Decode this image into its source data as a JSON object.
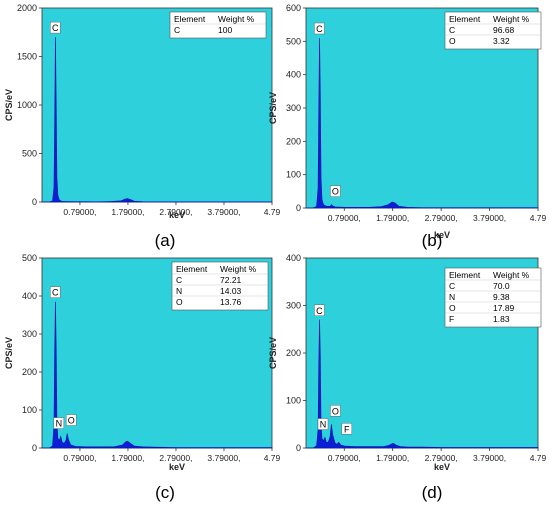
{
  "figure": {
    "panels": [
      {
        "label": "(a)",
        "ylabel": "CPS/eV",
        "xlabel": "keV",
        "table": {
          "headers": [
            "Element",
            "Weight %"
          ],
          "rows": [
            [
              "C",
              "100"
            ]
          ]
        }
      },
      {
        "label": "(b)",
        "ylabel": "CPS/eV",
        "xlabel": "keV",
        "table": {
          "headers": [
            "Element",
            "Weight %"
          ],
          "rows": [
            [
              "C",
              "96.68"
            ],
            [
              "O",
              "3.32"
            ]
          ]
        }
      },
      {
        "label": "(c)",
        "ylabel": "CPS/eV",
        "xlabel": "keV",
        "table": {
          "headers": [
            "Element",
            "Weight %"
          ],
          "rows": [
            [
              "C",
              "72.21"
            ],
            [
              "N",
              "14.03"
            ],
            [
              "O",
              "13.76"
            ]
          ]
        }
      },
      {
        "label": "(d)",
        "ylabel": "CPS/eV",
        "xlabel": "keV",
        "table": {
          "headers": [
            "Element",
            "Weight %"
          ],
          "rows": [
            [
              "C",
              "70.0"
            ],
            [
              "N",
              "9.38"
            ],
            [
              "O",
              "17.89"
            ],
            [
              "F",
              "1.83"
            ]
          ]
        }
      }
    ]
  },
  "chart_data": [
    {
      "type": "line",
      "title": "",
      "panel_label": "(a)",
      "xlabel": "keV",
      "ylabel": "CPS/eV",
      "xlim": [
        0.0,
        4.79
      ],
      "ylim": [
        0,
        2000
      ],
      "xticks": [
        0.79,
        1.79,
        2.79,
        3.79,
        4.79
      ],
      "xtick_labels": [
        "0.79000,",
        "1.79000,",
        "2.79000,",
        "3.79000,",
        "4.79"
      ],
      "yticks": [
        0,
        500,
        1000,
        1500,
        2000
      ],
      "fill_color": "#0a1fd6",
      "background_color": "#2ed0dc",
      "series": [
        {
          "x": [
            0.0,
            0.15,
            0.22,
            0.25,
            0.265,
            0.28,
            0.295,
            0.31,
            0.33,
            0.36,
            0.42,
            0.55,
            0.7,
            0.9,
            1.1,
            1.3,
            1.45,
            1.65,
            1.73,
            1.78,
            1.84,
            1.92,
            2.1,
            2.4,
            2.8,
            3.2,
            3.6,
            4.0,
            4.4,
            4.79
          ],
          "y": [
            0,
            0,
            10,
            150,
            800,
            1700,
            1000,
            250,
            70,
            20,
            5,
            4,
            3,
            3,
            2,
            3,
            5,
            12,
            30,
            35,
            25,
            8,
            3,
            2,
            2,
            1,
            1,
            1,
            1,
            1
          ]
        }
      ],
      "peak_labels": [
        {
          "element": "C",
          "x": 0.277,
          "y": 1700
        }
      ],
      "table": {
        "headers": [
          "Element",
          "Weight %"
        ],
        "rows": [
          [
            "C",
            "100"
          ]
        ]
      }
    },
    {
      "type": "line",
      "title": "",
      "panel_label": "(b)",
      "xlabel": "keV",
      "ylabel": "CPS/eV",
      "xlim": [
        0.0,
        4.79
      ],
      "ylim": [
        0,
        600
      ],
      "xticks": [
        0.79,
        1.79,
        2.79,
        3.79,
        4.79
      ],
      "xtick_labels": [
        "0.79000,",
        "1.79000,",
        "2.79000,",
        "3.79000,",
        "4.79"
      ],
      "yticks": [
        0,
        100,
        200,
        300,
        400,
        500,
        600
      ],
      "fill_color": "#0a1fd6",
      "background_color": "#2ed0dc",
      "series": [
        {
          "x": [
            0.0,
            0.15,
            0.22,
            0.25,
            0.265,
            0.28,
            0.295,
            0.31,
            0.33,
            0.36,
            0.42,
            0.5,
            0.525,
            0.55,
            0.6,
            0.8,
            1.0,
            1.3,
            1.55,
            1.7,
            1.78,
            1.84,
            1.92,
            2.1,
            2.4,
            2.8,
            3.2,
            3.6,
            4.0,
            4.4,
            4.79
          ],
          "y": [
            0,
            0,
            5,
            60,
            300,
            510,
            330,
            90,
            25,
            10,
            5,
            5,
            10,
            6,
            3,
            2,
            2,
            2,
            4,
            10,
            18,
            15,
            5,
            2,
            1,
            1,
            1,
            1,
            1,
            1,
            1
          ]
        }
      ],
      "peak_labels": [
        {
          "element": "C",
          "x": 0.277,
          "y": 510
        },
        {
          "element": "O",
          "x": 0.525,
          "y": 10
        }
      ],
      "table": {
        "headers": [
          "Element",
          "Weight %"
        ],
        "rows": [
          [
            "C",
            "96.68"
          ],
          [
            "O",
            "3.32"
          ]
        ]
      }
    },
    {
      "type": "line",
      "title": "",
      "panel_label": "(c)",
      "xlabel": "keV",
      "ylabel": "CPS/eV",
      "xlim": [
        0.0,
        4.79
      ],
      "ylim": [
        0,
        500
      ],
      "xticks": [
        0.79,
        1.79,
        2.79,
        3.79,
        4.79
      ],
      "xtick_labels": [
        "0.79000,",
        "1.79000,",
        "2.79000,",
        "3.79000,",
        "4.79"
      ],
      "yticks": [
        0,
        100,
        200,
        300,
        400,
        500
      ],
      "fill_color": "#0a1fd6",
      "background_color": "#2ed0dc",
      "series": [
        {
          "x": [
            0.0,
            0.15,
            0.22,
            0.25,
            0.265,
            0.28,
            0.295,
            0.31,
            0.33,
            0.36,
            0.39,
            0.42,
            0.46,
            0.5,
            0.525,
            0.55,
            0.6,
            0.7,
            0.9,
            1.2,
            1.5,
            1.68,
            1.74,
            1.78,
            1.84,
            1.92,
            2.1,
            2.4,
            2.8,
            3.2,
            3.6,
            4.0,
            4.4,
            4.79
          ],
          "y": [
            0,
            0,
            5,
            60,
            250,
            385,
            260,
            70,
            25,
            20,
            30,
            15,
            12,
            20,
            38,
            22,
            8,
            4,
            3,
            3,
            3,
            8,
            16,
            18,
            12,
            5,
            3,
            2,
            1,
            1,
            1,
            1,
            1,
            1
          ]
        }
      ],
      "peak_labels": [
        {
          "element": "C",
          "x": 0.277,
          "y": 385
        },
        {
          "element": "N",
          "x": 0.392,
          "y": 30
        },
        {
          "element": "O",
          "x": 0.525,
          "y": 38
        }
      ],
      "table": {
        "headers": [
          "Element",
          "Weight %"
        ],
        "rows": [
          [
            "C",
            "72.21"
          ],
          [
            "N",
            "14.03"
          ],
          [
            "O",
            "13.76"
          ]
        ]
      }
    },
    {
      "type": "line",
      "title": "",
      "panel_label": "(d)",
      "xlabel": "keV",
      "ylabel": "CPS/eV",
      "xlim": [
        0.0,
        4.79
      ],
      "ylim": [
        0,
        400
      ],
      "xticks": [
        0.79,
        1.79,
        2.79,
        3.79,
        4.79
      ],
      "xtick_labels": [
        "0.79000,",
        "1.79000,",
        "2.79000,",
        "3.79000,",
        "4.79"
      ],
      "yticks": [
        0,
        100,
        200,
        300,
        400
      ],
      "fill_color": "#0a1fd6",
      "background_color": "#2ed0dc",
      "series": [
        {
          "x": [
            0.0,
            0.15,
            0.22,
            0.25,
            0.265,
            0.28,
            0.295,
            0.31,
            0.33,
            0.36,
            0.39,
            0.42,
            0.46,
            0.5,
            0.525,
            0.55,
            0.6,
            0.64,
            0.677,
            0.72,
            0.8,
            1.0,
            1.3,
            1.6,
            1.7,
            1.76,
            1.8,
            1.86,
            1.95,
            2.1,
            2.4,
            2.8,
            3.2,
            3.6,
            4.0,
            4.4,
            4.79
          ],
          "y": [
            0,
            0,
            5,
            40,
            180,
            270,
            190,
            50,
            20,
            15,
            22,
            12,
            12,
            25,
            50,
            28,
            10,
            8,
            12,
            6,
            4,
            3,
            3,
            3,
            5,
            8,
            10,
            6,
            3,
            2,
            2,
            1,
            1,
            1,
            1,
            1,
            1
          ]
        }
      ],
      "peak_labels": [
        {
          "element": "C",
          "x": 0.277,
          "y": 270
        },
        {
          "element": "N",
          "x": 0.392,
          "y": 22
        },
        {
          "element": "O",
          "x": 0.525,
          "y": 50
        },
        {
          "element": "F",
          "x": 0.677,
          "y": 12
        }
      ],
      "table": {
        "headers": [
          "Element",
          "Weight %"
        ],
        "rows": [
          [
            "C",
            "70.0"
          ],
          [
            "N",
            "9.38"
          ],
          [
            "O",
            "17.89"
          ],
          [
            "F",
            "1.83"
          ]
        ]
      }
    }
  ]
}
